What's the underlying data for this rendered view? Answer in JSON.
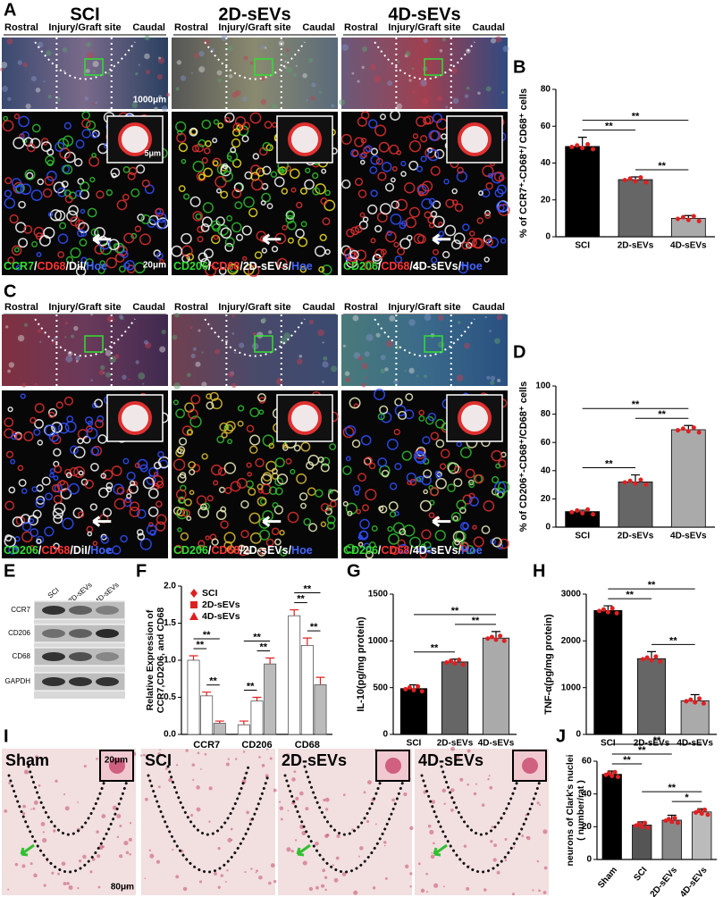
{
  "panel_a": {
    "label": "A",
    "groups": [
      "SCI",
      "2D-sEVs",
      "4D-sEVs"
    ],
    "orientation": [
      "Rostral",
      "Injury/Graft site",
      "Caudal"
    ],
    "stains": [
      [
        {
          "text": "CCR7",
          "color": "#33dd33"
        },
        {
          "text": "/",
          "color": "#ffffff"
        },
        {
          "text": "CD68",
          "color": "#ff3333"
        },
        {
          "text": "/DiI/",
          "color": "#ffffff"
        },
        {
          "text": "Hoe",
          "color": "#4466ff"
        }
      ],
      [
        {
          "text": "CD206",
          "color": "#33dd33"
        },
        {
          "text": "/",
          "color": "#ffffff"
        },
        {
          "text": "CD68",
          "color": "#ff3333"
        },
        {
          "text": "/2D-sEVs/",
          "color": "#ffffff"
        },
        {
          "text": "Hoe",
          "color": "#4466ff"
        }
      ],
      [
        {
          "text": "CD206",
          "color": "#33dd33"
        },
        {
          "text": "/",
          "color": "#ffffff"
        },
        {
          "text": "CD68",
          "color": "#ff3333"
        },
        {
          "text": "/4D-sEVs/",
          "color": "#ffffff"
        },
        {
          "text": "Hoe",
          "color": "#4466ff"
        }
      ]
    ],
    "scale_bars": [
      "1000μm",
      "5μm",
      "20μm"
    ]
  },
  "panel_c": {
    "label": "C",
    "orientation": [
      "Rostral",
      "Injury/Graft site",
      "Caudal"
    ],
    "stains": [
      [
        {
          "text": "CD206",
          "color": "#33dd33"
        },
        {
          "text": "/",
          "color": "#ffffff"
        },
        {
          "text": "CD68",
          "color": "#ff3333"
        },
        {
          "text": "/DiI/",
          "color": "#ffffff"
        },
        {
          "text": "Hoe",
          "color": "#4466ff"
        }
      ],
      [
        {
          "text": "CD206",
          "color": "#33dd33"
        },
        {
          "text": "/",
          "color": "#ffffff"
        },
        {
          "text": "CD68",
          "color": "#ff3333"
        },
        {
          "text": "/2D-sEVs/",
          "color": "#ffffff"
        },
        {
          "text": "Hoe",
          "color": "#4466ff"
        }
      ],
      [
        {
          "text": "CD206",
          "color": "#33dd33"
        },
        {
          "text": "/",
          "color": "#ffffff"
        },
        {
          "text": "CD68",
          "color": "#ff3333"
        },
        {
          "text": "/4D-sEVs/",
          "color": "#ffffff"
        },
        {
          "text": "Hoe",
          "color": "#4466ff"
        }
      ]
    ]
  },
  "panel_e": {
    "label": "E",
    "columns": [
      "SCI",
      "2D-sEVs",
      "4D-sEVs"
    ],
    "rows": [
      "CCR7",
      "CD206",
      "CD68",
      "GAPDH"
    ]
  },
  "panel_i": {
    "label": "I",
    "groups": [
      "Sham",
      "SCI",
      "2D-sEVs",
      "4D-sEVs"
    ],
    "scale_bars": [
      "20μm",
      "80μm"
    ]
  },
  "chart_data": [
    {
      "type": "bar",
      "panel": "B",
      "ylabel": "% of CCR7⁺-CD68⁺/ CD68⁺ cells",
      "categories": [
        "SCI",
        "2D-sEVs",
        "4D-sEVs"
      ],
      "values": [
        49,
        31,
        10
      ],
      "errors": [
        5,
        1.5,
        1.5
      ],
      "colors": [
        "#000000",
        "#666666",
        "#aaaaaa"
      ],
      "ylim": [
        0,
        80
      ],
      "yticks": [
        0,
        20,
        40,
        60,
        80
      ],
      "significance": [
        {
          "from": 0,
          "to": 1,
          "label": "**"
        },
        {
          "from": 1,
          "to": 2,
          "label": "**"
        },
        {
          "from": 0,
          "to": 2,
          "label": "**"
        }
      ]
    },
    {
      "type": "bar",
      "panel": "D",
      "ylabel": "% of CD206⁺-CD68⁺/CD68⁺ cells",
      "categories": [
        "SCI",
        "2D-sEVs",
        "4D-sEVs"
      ],
      "values": [
        11,
        32,
        69
      ],
      "errors": [
        1,
        5,
        3
      ],
      "colors": [
        "#000000",
        "#666666",
        "#aaaaaa"
      ],
      "ylim": [
        0,
        100
      ],
      "yticks": [
        0,
        20,
        40,
        60,
        80,
        100
      ],
      "significance": [
        {
          "from": 0,
          "to": 1,
          "label": "**"
        },
        {
          "from": 1,
          "to": 2,
          "label": "**"
        },
        {
          "from": 0,
          "to": 2,
          "label": "**"
        }
      ]
    },
    {
      "type": "grouped-bar",
      "panel": "F",
      "ylabel": [
        "Relative Expression of",
        "CCR7,CD206, and CD68"
      ],
      "categories": [
        "CCR7",
        "CD206",
        "CD68"
      ],
      "series": [
        {
          "name": "SCI",
          "color": "#e02020",
          "marker": "diamond",
          "values": [
            1.0,
            0.13,
            1.6
          ],
          "errors": [
            0.06,
            0.05,
            0.08
          ]
        },
        {
          "name": "2D-sEVs",
          "color": "#e02020",
          "marker": "square",
          "values": [
            0.52,
            0.45,
            1.2
          ],
          "errors": [
            0.05,
            0.05,
            0.1
          ]
        },
        {
          "name": "4D-sEVs",
          "color": "#e02020",
          "marker": "triangle",
          "values": [
            0.15,
            0.95,
            0.67
          ],
          "errors": [
            0.03,
            0.08,
            0.1
          ]
        }
      ],
      "ylim": [
        0,
        2
      ],
      "yticks": [
        {
          "value": 0,
          "label": "0.0"
        },
        0.5,
        {
          "value": 1,
          "label": "1.0"
        },
        1.5,
        {
          "value": 2,
          "label": "2.0"
        }
      ],
      "significance": [
        {
          "category": 0,
          "from": 0,
          "to": 1,
          "label": "**"
        },
        {
          "category": 0,
          "from": 1,
          "to": 2,
          "label": "**"
        },
        {
          "category": 0,
          "from": 0,
          "to": 2,
          "label": "**"
        },
        {
          "category": 1,
          "from": 0,
          "to": 1,
          "label": "**"
        },
        {
          "category": 1,
          "from": 1,
          "to": 2,
          "label": "**"
        },
        {
          "category": 1,
          "from": 0,
          "to": 2,
          "label": "**"
        },
        {
          "category": 2,
          "from": 0,
          "to": 1,
          "label": "**"
        },
        {
          "category": 2,
          "from": 1,
          "to": 2,
          "label": "**"
        },
        {
          "category": 2,
          "from": 0,
          "to": 2,
          "label": "**"
        }
      ]
    },
    {
      "type": "bar",
      "panel": "G",
      "ylabel": "IL-10(pg/mg protein)",
      "categories": [
        "SCI",
        "2D-sEVs",
        "4D-sEVs"
      ],
      "values": [
        490,
        775,
        1030
      ],
      "errors": [
        40,
        30,
        70
      ],
      "colors": [
        "#000000",
        "#666666",
        "#aaaaaa"
      ],
      "ylim": [
        0,
        1500
      ],
      "yticks": [
        0,
        500,
        1000,
        1500
      ],
      "significance": [
        {
          "from": 0,
          "to": 1,
          "label": "**"
        },
        {
          "from": 1,
          "to": 2,
          "label": "**"
        },
        {
          "from": 0,
          "to": 2,
          "label": "**"
        }
      ]
    },
    {
      "type": "bar",
      "panel": "H",
      "ylabel": "TNF-α(pg/mg protein)",
      "categories": [
        "SCI",
        "2D-sEVs",
        "4D-sEVs"
      ],
      "values": [
        2650,
        1620,
        720
      ],
      "errors": [
        100,
        150,
        130
      ],
      "colors": [
        "#000000",
        "#666666",
        "#aaaaaa"
      ],
      "ylim": [
        0,
        3000
      ],
      "yticks": [
        0,
        1000,
        2000,
        3000
      ],
      "significance": [
        {
          "from": 0,
          "to": 1,
          "label": "**"
        },
        {
          "from": 1,
          "to": 2,
          "label": "**"
        },
        {
          "from": 0,
          "to": 2,
          "label": "**"
        }
      ]
    },
    {
      "type": "bar",
      "panel": "J",
      "ylabel": [
        "neurons of Clark's nuclei",
        "( number/rat )"
      ],
      "categories": [
        "Sham",
        "SCI",
        "2D-sEVs",
        "4D-sEVs"
      ],
      "values": [
        52,
        21,
        24,
        29
      ],
      "errors": [
        2,
        2,
        3,
        2
      ],
      "colors": [
        "#000000",
        "#555555",
        "#888888",
        "#bbbbbb"
      ],
      "ylim": [
        0,
        60
      ],
      "yticks": [
        0,
        20,
        40,
        60
      ],
      "significance": [
        {
          "from": 0,
          "to": 1,
          "label": "**"
        },
        {
          "from": 1,
          "to": 3,
          "label": "**"
        },
        {
          "from": 2,
          "to": 3,
          "label": "*"
        },
        {
          "from": 0,
          "to": 2,
          "label": "**"
        },
        {
          "from": 0,
          "to": 3,
          "label": "**"
        }
      ]
    }
  ]
}
